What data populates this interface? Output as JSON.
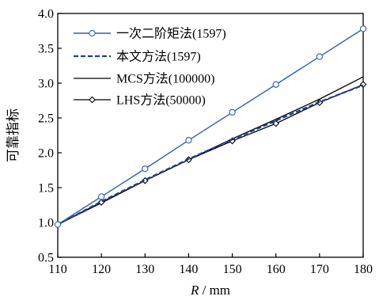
{
  "chart_data": {
    "type": "line",
    "title": "",
    "xlabel": {
      "var": "R",
      "unit": " / mm"
    },
    "ylabel": "可靠指标",
    "xlim": [
      110,
      180
    ],
    "ylim": [
      0.5,
      4.0
    ],
    "xticks": [
      110,
      120,
      130,
      140,
      150,
      160,
      170,
      180
    ],
    "yticks": [
      "0.5",
      "1.0",
      "1.5",
      "2.0",
      "2.5",
      "3.0",
      "3.5",
      "4.0"
    ],
    "legend_position": "top-left",
    "grid": false,
    "series": [
      {
        "name": "一次二阶矩法(1597)",
        "color": "#2f5fb3",
        "line": "solid",
        "marker": "circle",
        "x": [
          110,
          120,
          130,
          140,
          150,
          160,
          170,
          180
        ],
        "y": [
          0.97,
          1.37,
          1.77,
          2.18,
          2.58,
          2.98,
          3.38,
          3.78
        ]
      },
      {
        "name": "本文方法(1597)",
        "color": "#1f3f9a",
        "line": "dashed",
        "marker": "none",
        "x": [
          110,
          120,
          130,
          140,
          150,
          160,
          170,
          180
        ],
        "y": [
          0.97,
          1.3,
          1.61,
          1.91,
          2.19,
          2.46,
          2.73,
          2.97
        ]
      },
      {
        "name": "MCS方法(100000)",
        "color": "#000000",
        "line": "solid",
        "marker": "none",
        "x": [
          110,
          120,
          130,
          140,
          150,
          160,
          170,
          180
        ],
        "y": [
          0.97,
          1.28,
          1.6,
          1.9,
          2.2,
          2.48,
          2.77,
          3.09
        ]
      },
      {
        "name": "LHS方法(50000)",
        "color": "#000000",
        "line": "solid",
        "marker": "diamond",
        "x": [
          110,
          120,
          130,
          140,
          150,
          160,
          170,
          180
        ],
        "y": [
          0.97,
          1.29,
          1.6,
          1.9,
          2.17,
          2.42,
          2.72,
          2.98
        ]
      }
    ]
  }
}
